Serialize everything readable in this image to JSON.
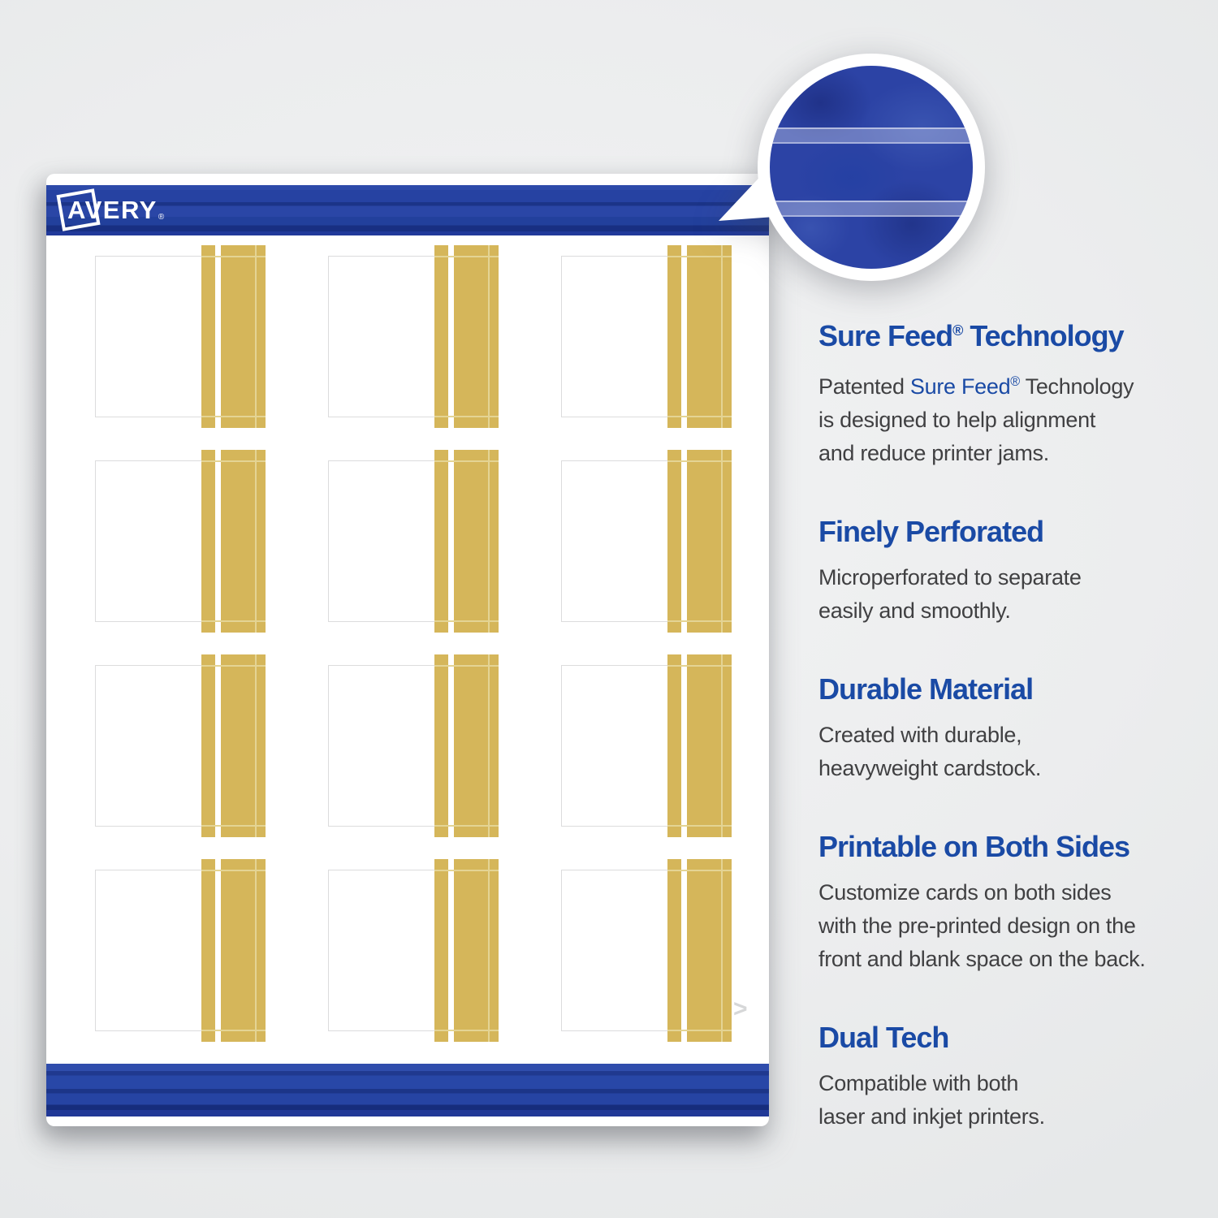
{
  "brand": {
    "name": "AVERY",
    "registered": "®"
  },
  "colors": {
    "accent_blue": "#1a4aa5",
    "band_blue": "#2642a2",
    "gold": "#d5b65a",
    "gold_line": "#e4d494",
    "body_text": "#404042",
    "card_border": "#dcdcdd",
    "background": "#eef0f1",
    "callout_blue": "#2c43a5"
  },
  "icons": {
    "chevron_right": ">",
    "registered": "®"
  },
  "sheet": {
    "card_grid": {
      "rows": 4,
      "columns": 3,
      "count": 12
    }
  },
  "features": [
    {
      "heading": [
        {
          "t": "Sure Feed"
        },
        {
          "t": "®",
          "sup": true
        },
        {
          "t": " Technology"
        }
      ],
      "lines": [
        [
          {
            "t": "Patented "
          },
          {
            "t": "Sure Feed",
            "c": "accent"
          },
          {
            "t": "®",
            "c": "accent",
            "sup": true
          },
          {
            "t": " Technology"
          }
        ],
        [
          {
            "t": "is designed to help alignment"
          }
        ],
        [
          {
            "t": "and reduce printer jams."
          }
        ]
      ]
    },
    {
      "heading": [
        {
          "t": "Finely Perforated"
        }
      ],
      "lines": [
        [
          {
            "t": "Microperforated to separate"
          }
        ],
        [
          {
            "t": "easily and smoothly."
          }
        ]
      ]
    },
    {
      "heading": [
        {
          "t": "Durable Material"
        }
      ],
      "lines": [
        [
          {
            "t": "Created with durable,"
          }
        ],
        [
          {
            "t": "heavyweight cardstock."
          }
        ]
      ]
    },
    {
      "heading": [
        {
          "t": "Printable on Both Sides"
        }
      ],
      "lines": [
        [
          {
            "t": "Customize cards on both sides"
          }
        ],
        [
          {
            "t": "with the pre-printed design on the"
          }
        ],
        [
          {
            "t": "front and blank space on the back."
          }
        ]
      ]
    },
    {
      "heading": [
        {
          "t": "Dual Tech"
        }
      ],
      "lines": [
        [
          {
            "t": "Compatible with both"
          }
        ],
        [
          {
            "t": "laser and inkjet printers."
          }
        ]
      ]
    }
  ]
}
